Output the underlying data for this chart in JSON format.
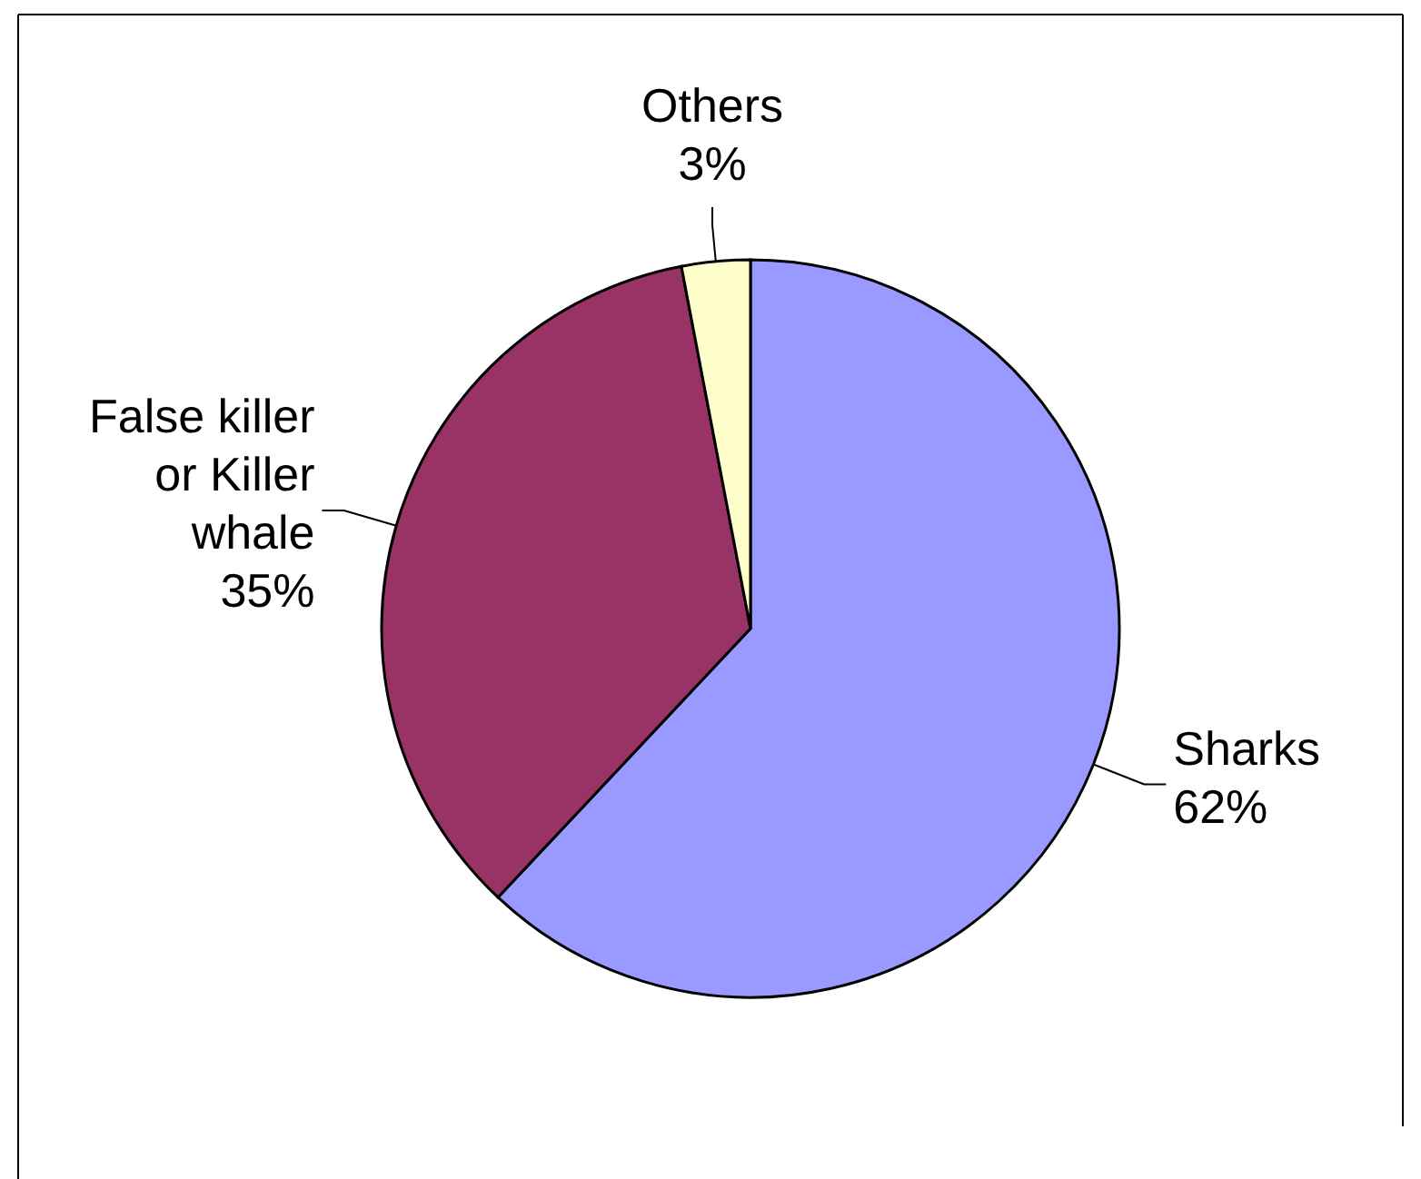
{
  "chart_data": {
    "type": "pie",
    "categories": [
      "Sharks",
      "False killer or Killer whale",
      "Others"
    ],
    "values": [
      62,
      35,
      3
    ],
    "colors": [
      "#9999ff",
      "#993366",
      "#ffffcc"
    ],
    "value_labels": [
      "62%",
      "35%",
      "3%"
    ]
  }
}
